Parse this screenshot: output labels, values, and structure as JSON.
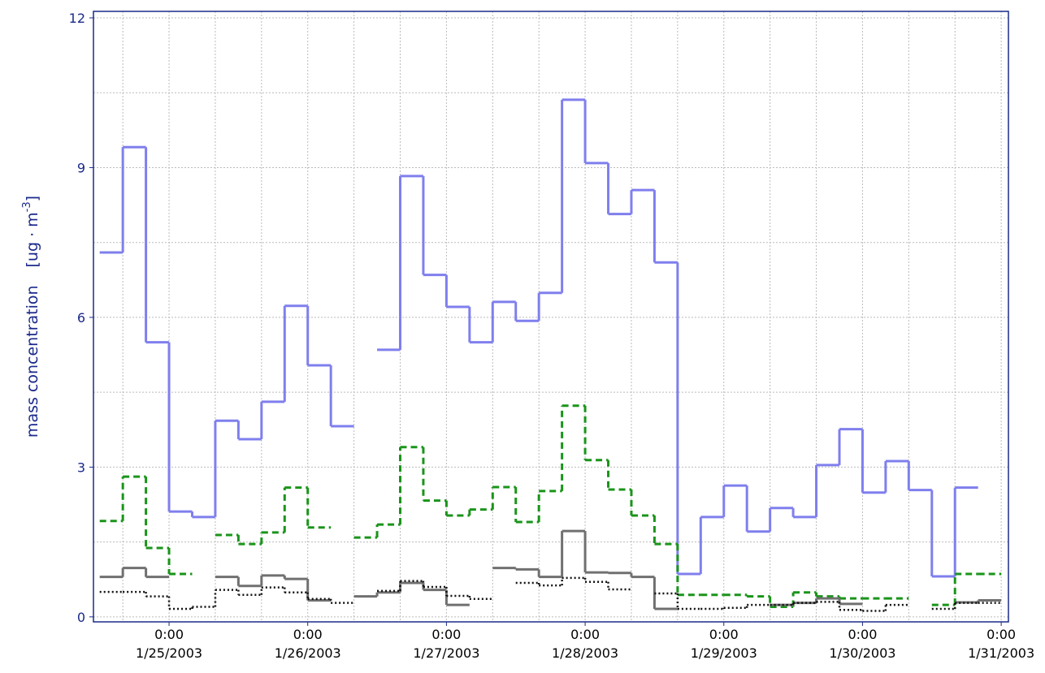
{
  "chart_data": {
    "type": "step",
    "y_label": [
      "mass concentration",
      "[ug · m",
      "-3",
      "]"
    ],
    "x": [
      "2003-01-24 12:00",
      "2003-01-24 16:00",
      "2003-01-24 20:00",
      "2003-01-25 00:00",
      "2003-01-25 04:00",
      "2003-01-25 08:00",
      "2003-01-25 12:00",
      "2003-01-25 16:00",
      "2003-01-25 20:00",
      "2003-01-26 00:00",
      "2003-01-26 04:00",
      "2003-01-26 08:00",
      "2003-01-26 12:00",
      "2003-01-26 16:00",
      "2003-01-26 20:00",
      "2003-01-27 00:00",
      "2003-01-27 04:00",
      "2003-01-27 08:00",
      "2003-01-27 12:00",
      "2003-01-27 16:00",
      "2003-01-27 20:00",
      "2003-01-28 00:00",
      "2003-01-28 04:00",
      "2003-01-28 08:00",
      "2003-01-28 12:00",
      "2003-01-28 16:00",
      "2003-01-28 20:00",
      "2003-01-29 00:00",
      "2003-01-29 04:00",
      "2003-01-29 08:00",
      "2003-01-29 12:00",
      "2003-01-29 16:00",
      "2003-01-29 20:00",
      "2003-01-30 00:00",
      "2003-01-30 04:00",
      "2003-01-30 08:00",
      "2003-01-30 12:00",
      "2003-01-30 16:00",
      "2003-01-30 20:00"
    ],
    "series": [
      {
        "color": "#7f7fee",
        "dash": "solid",
        "values": [
          7.3,
          9.41,
          5.5,
          2.11,
          2.0,
          3.93,
          3.56,
          4.31,
          6.23,
          5.04,
          3.82,
          null,
          5.35,
          8.83,
          6.85,
          6.21,
          5.5,
          6.31,
          5.93,
          6.49,
          10.36,
          9.09,
          8.07,
          8.55,
          7.1,
          0.86,
          2.0,
          2.63,
          1.71,
          2.18,
          2.0,
          3.04,
          3.76,
          2.49,
          3.12,
          2.54,
          0.81,
          2.59,
          null
        ]
      },
      {
        "color": "#1a941a",
        "dash": "dashed",
        "values": [
          1.92,
          2.81,
          1.38,
          0.86,
          null,
          1.64,
          1.46,
          1.69,
          2.59,
          1.79,
          null,
          1.59,
          1.85,
          3.4,
          2.33,
          2.03,
          2.15,
          2.6,
          1.9,
          2.52,
          4.23,
          3.14,
          2.55,
          2.03,
          1.46,
          0.44,
          0.44,
          0.44,
          0.41,
          0.2,
          0.49,
          0.41,
          0.37,
          0.37,
          0.37,
          null,
          0.24,
          0.86,
          0.86
        ]
      },
      {
        "color": "#707070",
        "dash": "solid",
        "values": [
          0.8,
          0.98,
          0.8,
          null,
          null,
          0.8,
          0.62,
          0.83,
          0.76,
          0.33,
          null,
          0.41,
          0.49,
          0.68,
          0.54,
          0.24,
          null,
          0.98,
          0.95,
          0.8,
          1.72,
          0.89,
          0.88,
          0.8,
          0.16,
          null,
          null,
          null,
          null,
          0.24,
          0.28,
          0.37,
          0.26,
          null,
          null,
          null,
          null,
          0.29,
          0.33
        ]
      },
      {
        "color": "#111111",
        "dash": "dotted",
        "values": [
          0.5,
          0.5,
          0.41,
          0.16,
          0.2,
          0.54,
          0.44,
          0.59,
          0.49,
          0.36,
          0.28,
          null,
          0.52,
          0.72,
          0.6,
          0.42,
          0.36,
          null,
          0.68,
          0.63,
          0.78,
          0.7,
          0.55,
          null,
          0.47,
          0.16,
          0.16,
          0.18,
          0.24,
          0.24,
          0.28,
          0.3,
          0.14,
          0.12,
          0.24,
          null,
          0.16,
          0.28,
          0.28
        ]
      }
    ],
    "xlim": [
      "2003-01-24 10:55",
      "2003-01-31 01:15"
    ],
    "xticks": [
      {
        "value": "2003-01-25 00:00",
        "label": [
          "0:00",
          "1/25/2003"
        ]
      },
      {
        "value": "2003-01-26 00:00",
        "label": [
          "0:00",
          "1/26/2003"
        ]
      },
      {
        "value": "2003-01-27 00:00",
        "label": [
          "0:00",
          "1/27/2003"
        ]
      },
      {
        "value": "2003-01-28 00:00",
        "label": [
          "0:00",
          "1/28/2003"
        ]
      },
      {
        "value": "2003-01-29 00:00",
        "label": [
          "0:00",
          "1/29/2003"
        ]
      },
      {
        "value": "2003-01-30 00:00",
        "label": [
          "0:00",
          "1/30/2003"
        ]
      },
      {
        "value": "2003-01-31 00:00",
        "label": [
          "0:00",
          "1/31/2003"
        ]
      }
    ],
    "xticks_minor": [
      "2003-01-24 16:00",
      "2003-01-25 08:00",
      "2003-01-25 16:00",
      "2003-01-26 08:00",
      "2003-01-26 16:00",
      "2003-01-27 08:00",
      "2003-01-27 16:00",
      "2003-01-28 08:00",
      "2003-01-28 16:00",
      "2003-01-29 08:00",
      "2003-01-29 16:00",
      "2003-01-30 08:00",
      "2003-01-30 16:00"
    ],
    "ylim": [
      -0.1,
      12.13
    ],
    "yticks": [
      0,
      3,
      6,
      9,
      12
    ],
    "yticks_minor": [
      1.5,
      4.5,
      7.5,
      10.5
    ],
    "grid": true
  }
}
